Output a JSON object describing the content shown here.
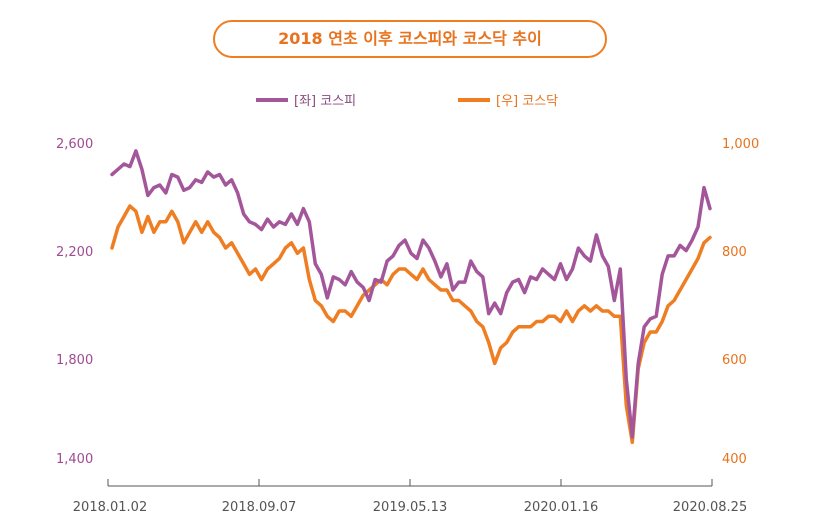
{
  "chart_data": {
    "type": "line",
    "title": "2018 연초 이후 코스피와 코스닥 추이",
    "x_ticks": [
      "2018.01.02",
      "2018.09.07",
      "2019.05.13",
      "2020.01.16",
      "2020.08.25"
    ],
    "left_axis": {
      "ticks": [
        "2,600",
        "2,200",
        "1,800",
        "1,400"
      ],
      "range": [
        1400,
        2600
      ]
    },
    "right_axis": {
      "ticks": [
        "1,000",
        "800",
        "600",
        "400"
      ],
      "range": [
        400,
        1000
      ]
    },
    "colors": {
      "kospi": "#a3579a",
      "kosdaq": "#ef7d22",
      "accent": "#ef7d22"
    },
    "series": [
      {
        "name": "[좌] 코스피",
        "axis": "left",
        "values": [
          2480,
          2500,
          2520,
          2510,
          2570,
          2500,
          2400,
          2430,
          2440,
          2410,
          2480,
          2470,
          2420,
          2430,
          2460,
          2450,
          2490,
          2470,
          2480,
          2440,
          2460,
          2410,
          2330,
          2300,
          2290,
          2270,
          2310,
          2280,
          2300,
          2290,
          2330,
          2290,
          2350,
          2300,
          2140,
          2100,
          2010,
          2090,
          2080,
          2060,
          2110,
          2070,
          2050,
          2000,
          2080,
          2070,
          2150,
          2170,
          2210,
          2230,
          2180,
          2160,
          2230,
          2200,
          2150,
          2090,
          2140,
          2040,
          2070,
          2070,
          2150,
          2110,
          2090,
          1950,
          1990,
          1950,
          2030,
          2070,
          2080,
          2030,
          2090,
          2080,
          2120,
          2100,
          2080,
          2140,
          2080,
          2120,
          2200,
          2170,
          2150,
          2250,
          2170,
          2130,
          2000,
          2120,
          1700,
          1480,
          1760,
          1900,
          1930,
          1940,
          2100,
          2170,
          2170,
          2210,
          2190,
          2230,
          2280,
          2430,
          2350
        ]
      },
      {
        "name": "[우] 코스닥",
        "axis": "right",
        "values": [
          800,
          840,
          860,
          880,
          870,
          830,
          860,
          830,
          850,
          850,
          870,
          850,
          810,
          830,
          850,
          830,
          850,
          830,
          820,
          800,
          810,
          790,
          770,
          750,
          760,
          740,
          760,
          770,
          780,
          800,
          810,
          790,
          800,
          740,
          700,
          690,
          670,
          660,
          680,
          680,
          670,
          690,
          710,
          720,
          730,
          740,
          730,
          750,
          760,
          760,
          750,
          740,
          760,
          740,
          730,
          720,
          720,
          700,
          700,
          690,
          680,
          660,
          650,
          620,
          580,
          610,
          620,
          640,
          650,
          650,
          650,
          660,
          660,
          670,
          670,
          660,
          680,
          660,
          680,
          690,
          680,
          690,
          680,
          680,
          670,
          670,
          500,
          430,
          570,
          620,
          640,
          640,
          660,
          690,
          700,
          720,
          740,
          760,
          780,
          810,
          820
        ]
      }
    ]
  }
}
